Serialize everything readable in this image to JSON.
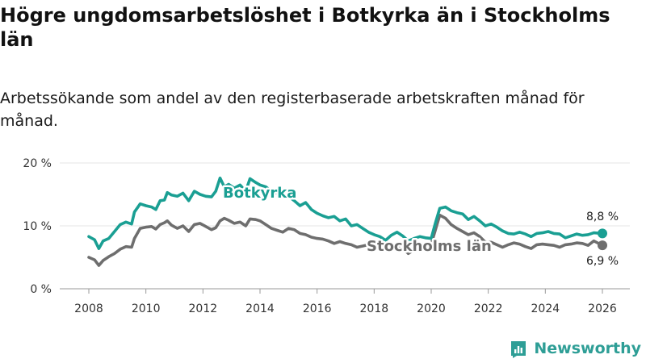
{
  "title": "Högre ungdomsarbetslöshet i Botkyrka än i Stockholms län",
  "subtitle": "Arbetssökande som andel av den registerbaserade arbetskraften månad för månad.",
  "brand": {
    "name": "Newsworthy",
    "icon": "bar-chart-logo-icon",
    "color": "#2e9e96"
  },
  "chart_data": {
    "type": "line",
    "ylim": [
      0,
      20
    ],
    "xlim": [
      2008,
      2026
    ],
    "yticks": [
      0,
      10,
      20
    ],
    "ytick_labels": [
      "0 %",
      "10 %",
      "20 %"
    ],
    "xticks": [
      2008,
      2010,
      2012,
      2014,
      2016,
      2018,
      2020,
      2022,
      2024,
      2026
    ],
    "xtick_labels": [
      "2008",
      "2010",
      "2012",
      "2014",
      "2016",
      "2018",
      "2020",
      "2022",
      "2024",
      "2026"
    ],
    "grid": true,
    "series": [
      {
        "name": "Botkyrka",
        "color": "#1a9f93",
        "end_label": "8,8 %",
        "points": [
          [
            2008.0,
            8.3
          ],
          [
            2008.2,
            7.8
          ],
          [
            2008.35,
            6.4
          ],
          [
            2008.5,
            7.6
          ],
          [
            2008.7,
            8.0
          ],
          [
            2008.9,
            9.1
          ],
          [
            2009.1,
            10.2
          ],
          [
            2009.3,
            10.6
          ],
          [
            2009.5,
            10.3
          ],
          [
            2009.6,
            12.2
          ],
          [
            2009.8,
            13.5
          ],
          [
            2010.0,
            13.2
          ],
          [
            2010.2,
            13.0
          ],
          [
            2010.35,
            12.6
          ],
          [
            2010.5,
            14.0
          ],
          [
            2010.65,
            14.1
          ],
          [
            2010.75,
            15.3
          ],
          [
            2010.9,
            14.9
          ],
          [
            2011.1,
            14.7
          ],
          [
            2011.3,
            15.2
          ],
          [
            2011.5,
            14.0
          ],
          [
            2011.7,
            15.5
          ],
          [
            2011.9,
            15.0
          ],
          [
            2012.1,
            14.7
          ],
          [
            2012.3,
            14.6
          ],
          [
            2012.45,
            15.5
          ],
          [
            2012.6,
            17.6
          ],
          [
            2012.75,
            16.2
          ],
          [
            2012.9,
            16.6
          ],
          [
            2013.1,
            16.0
          ],
          [
            2013.3,
            16.5
          ],
          [
            2013.5,
            15.5
          ],
          [
            2013.65,
            17.5
          ],
          [
            2013.85,
            16.9
          ],
          [
            2014.0,
            16.5
          ],
          [
            2014.2,
            16.2
          ],
          [
            2014.4,
            15.5
          ],
          [
            2014.6,
            15.2
          ],
          [
            2014.8,
            14.8
          ],
          [
            2015.0,
            14.7
          ],
          [
            2015.2,
            14.0
          ],
          [
            2015.4,
            13.2
          ],
          [
            2015.6,
            13.7
          ],
          [
            2015.8,
            12.6
          ],
          [
            2016.0,
            12.0
          ],
          [
            2016.2,
            11.6
          ],
          [
            2016.4,
            11.3
          ],
          [
            2016.6,
            11.5
          ],
          [
            2016.8,
            10.8
          ],
          [
            2017.0,
            11.1
          ],
          [
            2017.2,
            10.0
          ],
          [
            2017.4,
            10.2
          ],
          [
            2017.6,
            9.6
          ],
          [
            2017.8,
            9.0
          ],
          [
            2018.0,
            8.6
          ],
          [
            2018.2,
            8.3
          ],
          [
            2018.4,
            7.7
          ],
          [
            2018.6,
            8.5
          ],
          [
            2018.8,
            9.0
          ],
          [
            2019.0,
            8.4
          ],
          [
            2019.2,
            7.6
          ],
          [
            2019.4,
            8.0
          ],
          [
            2019.6,
            8.3
          ],
          [
            2019.8,
            8.1
          ],
          [
            2020.0,
            8.0
          ],
          [
            2020.15,
            10.5
          ],
          [
            2020.3,
            12.8
          ],
          [
            2020.5,
            13.0
          ],
          [
            2020.7,
            12.4
          ],
          [
            2020.9,
            12.1
          ],
          [
            2021.1,
            11.9
          ],
          [
            2021.3,
            11.0
          ],
          [
            2021.5,
            11.5
          ],
          [
            2021.7,
            10.8
          ],
          [
            2021.9,
            10.0
          ],
          [
            2022.1,
            10.3
          ],
          [
            2022.3,
            9.8
          ],
          [
            2022.5,
            9.2
          ],
          [
            2022.7,
            8.8
          ],
          [
            2022.9,
            8.7
          ],
          [
            2023.1,
            9.0
          ],
          [
            2023.3,
            8.7
          ],
          [
            2023.5,
            8.3
          ],
          [
            2023.7,
            8.8
          ],
          [
            2023.9,
            8.9
          ],
          [
            2024.1,
            9.1
          ],
          [
            2024.3,
            8.8
          ],
          [
            2024.5,
            8.7
          ],
          [
            2024.7,
            8.1
          ],
          [
            2024.9,
            8.4
          ],
          [
            2025.1,
            8.7
          ],
          [
            2025.3,
            8.5
          ],
          [
            2025.5,
            8.6
          ],
          [
            2025.7,
            8.9
          ],
          [
            2026.0,
            8.8
          ]
        ]
      },
      {
        "name": "Stockholms län",
        "color": "#6e6e6e",
        "end_label": "6,9 %",
        "points": [
          [
            2008.0,
            5.0
          ],
          [
            2008.2,
            4.6
          ],
          [
            2008.35,
            3.7
          ],
          [
            2008.5,
            4.5
          ],
          [
            2008.7,
            5.1
          ],
          [
            2008.9,
            5.6
          ],
          [
            2009.1,
            6.3
          ],
          [
            2009.3,
            6.7
          ],
          [
            2009.5,
            6.6
          ],
          [
            2009.6,
            8.0
          ],
          [
            2009.8,
            9.6
          ],
          [
            2010.0,
            9.8
          ],
          [
            2010.2,
            9.9
          ],
          [
            2010.35,
            9.5
          ],
          [
            2010.5,
            10.2
          ],
          [
            2010.65,
            10.5
          ],
          [
            2010.75,
            10.8
          ],
          [
            2010.9,
            10.1
          ],
          [
            2011.1,
            9.6
          ],
          [
            2011.3,
            10.0
          ],
          [
            2011.5,
            9.1
          ],
          [
            2011.7,
            10.2
          ],
          [
            2011.9,
            10.4
          ],
          [
            2012.1,
            9.9
          ],
          [
            2012.3,
            9.4
          ],
          [
            2012.45,
            9.7
          ],
          [
            2012.6,
            10.8
          ],
          [
            2012.75,
            11.2
          ],
          [
            2012.9,
            10.9
          ],
          [
            2013.1,
            10.4
          ],
          [
            2013.3,
            10.6
          ],
          [
            2013.5,
            10.0
          ],
          [
            2013.65,
            11.1
          ],
          [
            2013.85,
            11.0
          ],
          [
            2014.0,
            10.8
          ],
          [
            2014.2,
            10.2
          ],
          [
            2014.4,
            9.6
          ],
          [
            2014.6,
            9.3
          ],
          [
            2014.8,
            9.0
          ],
          [
            2015.0,
            9.6
          ],
          [
            2015.2,
            9.4
          ],
          [
            2015.4,
            8.8
          ],
          [
            2015.6,
            8.6
          ],
          [
            2015.8,
            8.2
          ],
          [
            2016.0,
            8.0
          ],
          [
            2016.2,
            7.9
          ],
          [
            2016.4,
            7.6
          ],
          [
            2016.6,
            7.2
          ],
          [
            2016.8,
            7.5
          ],
          [
            2017.0,
            7.2
          ],
          [
            2017.2,
            7.0
          ],
          [
            2017.4,
            6.6
          ],
          [
            2017.6,
            6.8
          ],
          [
            2017.8,
            7.0
          ],
          [
            2018.0,
            6.8
          ],
          [
            2018.2,
            6.6
          ],
          [
            2018.4,
            6.4
          ],
          [
            2018.6,
            6.8
          ],
          [
            2018.8,
            7.0
          ],
          [
            2019.0,
            6.5
          ],
          [
            2019.2,
            5.6
          ],
          [
            2019.4,
            6.2
          ],
          [
            2019.6,
            6.9
          ],
          [
            2019.8,
            7.0
          ],
          [
            2020.0,
            7.1
          ],
          [
            2020.15,
            9.4
          ],
          [
            2020.3,
            11.7
          ],
          [
            2020.5,
            11.2
          ],
          [
            2020.7,
            10.2
          ],
          [
            2020.9,
            9.6
          ],
          [
            2021.1,
            9.1
          ],
          [
            2021.3,
            8.6
          ],
          [
            2021.5,
            8.9
          ],
          [
            2021.7,
            8.3
          ],
          [
            2021.9,
            7.4
          ],
          [
            2022.1,
            7.4
          ],
          [
            2022.3,
            7.0
          ],
          [
            2022.5,
            6.6
          ],
          [
            2022.7,
            7.0
          ],
          [
            2022.9,
            7.3
          ],
          [
            2023.1,
            7.1
          ],
          [
            2023.3,
            6.7
          ],
          [
            2023.5,
            6.4
          ],
          [
            2023.7,
            7.0
          ],
          [
            2023.9,
            7.1
          ],
          [
            2024.1,
            7.0
          ],
          [
            2024.3,
            6.9
          ],
          [
            2024.5,
            6.6
          ],
          [
            2024.7,
            7.0
          ],
          [
            2024.9,
            7.1
          ],
          [
            2025.1,
            7.3
          ],
          [
            2025.3,
            7.2
          ],
          [
            2025.5,
            6.9
          ],
          [
            2025.7,
            7.6
          ],
          [
            2026.0,
            6.9
          ]
        ]
      }
    ]
  }
}
